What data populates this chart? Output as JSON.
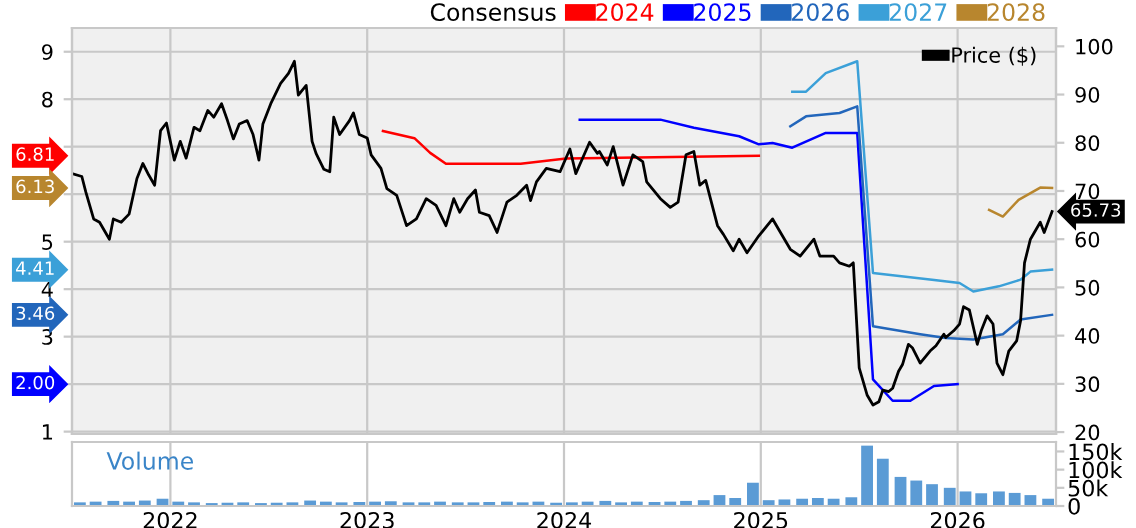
{
  "chart_data": [
    {
      "type": "line",
      "legend_title": "Consensus",
      "legend": "top",
      "grid": true,
      "tick_labels": "y",
      "xlim": [
        2021.5,
        2026.5
      ],
      "xticks": [
        2022,
        2023,
        2024,
        2025,
        2026
      ],
      "ylim": [
        0.95,
        9.5
      ],
      "yticks": [
        1,
        {
          "value": 2,
          "label": null
        },
        3,
        4,
        5,
        {
          "value": 6,
          "label": null
        },
        {
          "value": 7,
          "label": null
        },
        8,
        9
      ],
      "y2lim": [
        19.6,
        103.8
      ],
      "y2ticks": [
        20,
        30,
        40,
        50,
        60,
        70,
        80,
        90,
        100
      ],
      "series": [
        {
          "name": "2024",
          "color": "#ff0000",
          "x": [
            2023.08,
            2023.24,
            2023.32,
            2023.4,
            2023.78,
            2024.01,
            2024.99
          ],
          "values": [
            7.33,
            7.18,
            6.87,
            6.64,
            6.64,
            6.75,
            6.81
          ]
        },
        {
          "name": "2025",
          "color": "#0000ff",
          "x": [
            2024.08,
            2024.49,
            2024.66,
            2024.89,
            2024.99,
            2025.06,
            2025.16,
            2025.33,
            2025.49,
            2025.57,
            2025.67,
            2025.76,
            2025.88,
            2026.0
          ],
          "values": [
            7.57,
            7.57,
            7.4,
            7.22,
            7.05,
            7.08,
            6.98,
            7.29,
            7.29,
            2.1,
            1.65,
            1.65,
            1.96,
            2.0
          ]
        },
        {
          "name": "2026",
          "color": "#2266bb",
          "x": [
            2025.15,
            2025.23,
            2025.4,
            2025.49,
            2025.57,
            2025.81,
            2025.94,
            2026.08,
            2026.23,
            2026.32,
            2026.48
          ],
          "values": [
            7.43,
            7.64,
            7.71,
            7.85,
            3.22,
            3.05,
            2.97,
            2.94,
            3.05,
            3.36,
            3.46
          ]
        },
        {
          "name": "2027",
          "color": "#3ba0d8",
          "x": [
            2025.16,
            2025.23,
            2025.33,
            2025.49,
            2025.57,
            2025.87,
            2026.01,
            2026.08,
            2026.21,
            2026.32,
            2026.37,
            2026.48
          ],
          "values": [
            8.16,
            8.16,
            8.55,
            8.8,
            4.34,
            4.2,
            4.13,
            3.95,
            4.06,
            4.2,
            4.37,
            4.41
          ]
        },
        {
          "name": "2028",
          "color": "#b8862e",
          "x": [
            2026.16,
            2026.23,
            2026.31,
            2026.42,
            2026.48
          ],
          "values": [
            5.67,
            5.53,
            5.88,
            6.14,
            6.13
          ]
        },
        {
          "name": "Price ($)",
          "color": "#000000",
          "axis": "y2",
          "x": [
            2021.5,
            2021.55,
            2021.57,
            2021.61,
            2021.64,
            2021.69,
            2021.71,
            2021.75,
            2021.79,
            2021.83,
            2021.86,
            2021.89,
            2021.92,
            2021.95,
            2021.98,
            2022.02,
            2022.05,
            2022.08,
            2022.12,
            2022.15,
            2022.19,
            2022.22,
            2022.26,
            2022.29,
            2022.32,
            2022.35,
            2022.39,
            2022.42,
            2022.45,
            2022.47,
            2022.51,
            2022.56,
            2022.6,
            2022.63,
            2022.65,
            2022.69,
            2022.72,
            2022.74,
            2022.78,
            2022.81,
            2022.83,
            2022.86,
            2022.91,
            2022.93,
            2022.96,
            2023.0,
            2023.02,
            2023.07,
            2023.1,
            2023.15,
            2023.2,
            2023.25,
            2023.3,
            2023.35,
            2023.4,
            2023.44,
            2023.47,
            2023.51,
            2023.55,
            2023.57,
            2023.62,
            2023.66,
            2023.71,
            2023.76,
            2023.81,
            2023.83,
            2023.86,
            2023.91,
            2023.98,
            2024.03,
            2024.06,
            2024.13,
            2024.17,
            2024.18,
            2024.22,
            2024.25,
            2024.3,
            2024.35,
            2024.4,
            2024.42,
            2024.49,
            2024.54,
            2024.58,
            2024.62,
            2024.66,
            2024.69,
            2024.72,
            2024.78,
            2024.81,
            2024.86,
            2024.89,
            2024.93,
            2024.99,
            2025.06,
            2025.1,
            2025.15,
            2025.2,
            2025.27,
            2025.3,
            2025.37,
            2025.4,
            2025.45,
            2025.47,
            2025.5,
            2025.52,
            2025.54,
            2025.57,
            2025.6,
            2025.62,
            2025.65,
            2025.67,
            2025.7,
            2025.72,
            2025.75,
            2025.77,
            2025.81,
            2025.86,
            2025.89,
            2025.93,
            2025.94,
            2025.98,
            2026.01,
            2026.03,
            2026.06,
            2026.1,
            2026.12,
            2026.15,
            2026.18,
            2026.2,
            2026.23,
            2026.26,
            2026.3,
            2026.32,
            2026.34,
            2026.37,
            2026.42,
            2026.44,
            2026.48
          ],
          "values": [
            73.6,
            73.0,
            69.8,
            64.2,
            63.5,
            60.0,
            64.2,
            63.5,
            65.2,
            72.6,
            75.7,
            73.3,
            71.2,
            82.5,
            84.1,
            76.4,
            80.3,
            76.8,
            83.2,
            82.5,
            86.7,
            85.3,
            88.1,
            84.6,
            80.8,
            83.9,
            84.6,
            81.7,
            76.4,
            83.9,
            88.1,
            92.3,
            94.4,
            96.9,
            89.9,
            91.9,
            80.3,
            77.8,
            74.5,
            74.0,
            85.3,
            81.7,
            84.6,
            86.2,
            81.7,
            81.0,
            77.5,
            74.7,
            70.5,
            69.1,
            62.8,
            64.2,
            68.4,
            67.0,
            62.8,
            68.4,
            65.6,
            68.4,
            70.2,
            65.6,
            64.9,
            61.4,
            67.7,
            69.1,
            71.2,
            68.0,
            71.9,
            74.7,
            74.0,
            78.7,
            73.6,
            80.1,
            77.8,
            78.2,
            75.4,
            79.2,
            71.2,
            77.5,
            76.1,
            71.9,
            68.4,
            66.6,
            67.7,
            77.5,
            78.2,
            71.2,
            72.2,
            62.8,
            61.0,
            57.6,
            60.0,
            57.2,
            60.7,
            64.2,
            61.4,
            57.9,
            56.5,
            60.0,
            56.5,
            56.5,
            55.1,
            54.4,
            55.1,
            33.3,
            30.5,
            27.7,
            25.6,
            26.3,
            28.7,
            28.4,
            29.1,
            32.6,
            34.0,
            38.2,
            37.5,
            34.3,
            36.8,
            37.9,
            40.3,
            39.6,
            41.0,
            42.4,
            46.0,
            45.3,
            38.2,
            41.0,
            44.1,
            42.4,
            34.3,
            31.9,
            36.8,
            38.9,
            43.1,
            55.1,
            60.0,
            63.5,
            61.4,
            65.73
          ],
          "value_labels": [
            null,
            null,
            null,
            null,
            null,
            null,
            null,
            null,
            null,
            null,
            null,
            null,
            null,
            null,
            null,
            null,
            null,
            null,
            null,
            null,
            null,
            null,
            null,
            null,
            null,
            null,
            null,
            null,
            null,
            null,
            null,
            null,
            null,
            null,
            null,
            null,
            null,
            null,
            null,
            null,
            null,
            null,
            null,
            null,
            null,
            null,
            null,
            null,
            null,
            null,
            null,
            null,
            null,
            null,
            null,
            null,
            null,
            null,
            null,
            null,
            null,
            null,
            null,
            null,
            null,
            null,
            null,
            null,
            null,
            null,
            null,
            null,
            null,
            null,
            null,
            null,
            null,
            null,
            null,
            null,
            null,
            null,
            null,
            null,
            null,
            null,
            null,
            null,
            null,
            null,
            null,
            null,
            null,
            null,
            null,
            null,
            null,
            null,
            null,
            null,
            null,
            null,
            null,
            null,
            null,
            null,
            null,
            null,
            null,
            null,
            null,
            null,
            null,
            null,
            null,
            null,
            null,
            null,
            null,
            null,
            null,
            null,
            null,
            null,
            null,
            null,
            null,
            null,
            null,
            null,
            null,
            null,
            null,
            null,
            null,
            null,
            null,
            "65.73"
          ]
        }
      ],
      "annotations": [
        "6.81",
        "2.00",
        "3.46",
        "4.41",
        "6.13"
      ]
    },
    {
      "type": "bar",
      "title": "Volume",
      "color": "#5b9bd5",
      "grid": "x",
      "xlim": [
        2021.5,
        2026.5
      ],
      "xticks": [
        2022,
        2023,
        2024,
        2025,
        2026
      ],
      "ylim": [
        0,
        176000
      ],
      "yticks": [
        {
          "value": 0,
          "label": "0"
        },
        {
          "value": 50000,
          "label": "50k"
        },
        {
          "value": 100000,
          "label": "100k"
        },
        {
          "value": 150000,
          "label": "150k"
        }
      ],
      "x": [
        2021.54,
        2021.62,
        2021.71,
        2021.79,
        2021.87,
        2021.96,
        2022.04,
        2022.12,
        2022.21,
        2022.29,
        2022.37,
        2022.46,
        2022.54,
        2022.62,
        2022.71,
        2022.79,
        2022.87,
        2022.96,
        2023.04,
        2023.12,
        2023.21,
        2023.29,
        2023.37,
        2023.46,
        2023.54,
        2023.62,
        2023.71,
        2023.79,
        2023.87,
        2023.96,
        2024.04,
        2024.12,
        2024.21,
        2024.29,
        2024.37,
        2024.46,
        2024.54,
        2024.62,
        2024.71,
        2024.79,
        2024.87,
        2024.96,
        2025.04,
        2025.12,
        2025.21,
        2025.29,
        2025.37,
        2025.46,
        2025.54,
        2025.62,
        2025.71,
        2025.79,
        2025.87,
        2025.96,
        2026.04,
        2026.12,
        2026.21,
        2026.29,
        2026.37,
        2026.46
      ],
      "values": [
        10000,
        12000,
        14000,
        12000,
        15000,
        20000,
        12000,
        10000,
        8000,
        9000,
        10000,
        8000,
        9000,
        10000,
        15000,
        12000,
        10000,
        11000,
        12000,
        13000,
        10000,
        10000,
        12000,
        10000,
        10000,
        11000,
        12000,
        10000,
        12000,
        9000,
        10000,
        12000,
        14000,
        10000,
        12000,
        11000,
        12000,
        14000,
        16000,
        30000,
        22000,
        64000,
        16000,
        18000,
        20000,
        22000,
        20000,
        24000,
        166000,
        130000,
        80000,
        70000,
        60000,
        50000,
        40000,
        35000,
        40000,
        36000,
        30000,
        20000
      ]
    }
  ]
}
